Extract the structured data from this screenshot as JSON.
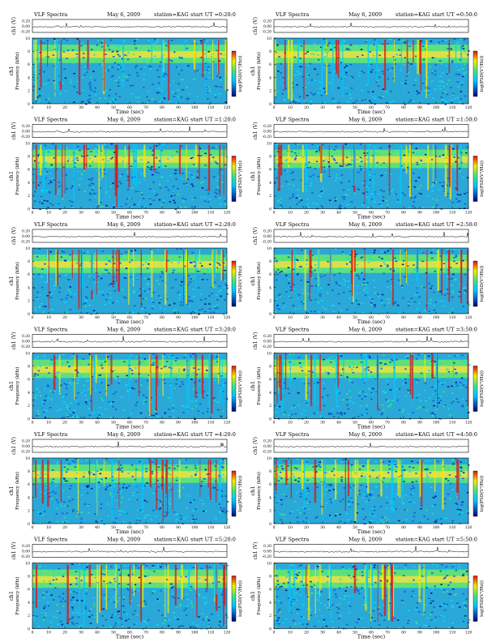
{
  "title_left": "VLF Spectra",
  "date": "May 6, 2009",
  "station": "station=KAG",
  "ch_label": "ch1 (V)",
  "freq_label": "Frequency (kHz)",
  "ch1_label": "ch1",
  "time_label": "Time (sec)",
  "cbar_label": "log(PSD(V²/Hz))",
  "colors": {
    "low": "#00007f",
    "mid": "#00c8ff",
    "green": "#40e08a",
    "yellow": "#f5ec00",
    "red": "#e01010"
  },
  "chart_data": [
    {
      "type": "heatmap",
      "start": "start UT =0:20:0",
      "xlim": [
        0,
        120
      ],
      "ylim": [
        0,
        10
      ],
      "xticks": [
        "0",
        "10",
        "20",
        "30",
        "40",
        "50",
        "60",
        "70",
        "80",
        "90",
        "100",
        "110",
        "120"
      ],
      "yticks": [
        "0",
        "2",
        "4",
        "6",
        "8",
        "10"
      ],
      "vticks": [
        "0.20",
        "0.00",
        "-0.20"
      ]
    },
    {
      "type": "heatmap",
      "start": "start UT =0:50:0",
      "xlim": [
        0,
        120
      ],
      "ylim": [
        0,
        10
      ],
      "xticks": [
        "0",
        "10",
        "20",
        "30",
        "40",
        "50",
        "60",
        "70",
        "80",
        "90",
        "100",
        "110",
        "120"
      ],
      "yticks": [
        "0",
        "2",
        "4",
        "6",
        "8",
        "10"
      ],
      "vticks": [
        "0.20",
        "0.00",
        "-0.20"
      ]
    },
    {
      "type": "heatmap",
      "start": "start UT =1:20:0",
      "xlim": [
        0,
        120
      ],
      "ylim": [
        0,
        10
      ],
      "xticks": [
        "0",
        "10",
        "20",
        "30",
        "40",
        "50",
        "60",
        "70",
        "80",
        "90",
        "100",
        "110",
        "120"
      ],
      "yticks": [
        "0",
        "2",
        "4",
        "6",
        "8",
        "10"
      ],
      "vticks": [
        "0.20",
        "0.00",
        "-0.20"
      ]
    },
    {
      "type": "heatmap",
      "start": "start UT =1:50:0",
      "xlim": [
        0,
        120
      ],
      "ylim": [
        0,
        10
      ],
      "xticks": [
        "0",
        "10",
        "20",
        "30",
        "40",
        "50",
        "60",
        "70",
        "80",
        "90",
        "100",
        "110",
        "120"
      ],
      "yticks": [
        "0",
        "2",
        "4",
        "6",
        "8",
        "10"
      ],
      "vticks": [
        "0.20",
        "0.00",
        "-0.20"
      ]
    },
    {
      "type": "heatmap",
      "start": "start UT =2:20:0",
      "xlim": [
        0,
        120
      ],
      "ylim": [
        0,
        10
      ],
      "xticks": [
        "0",
        "10",
        "20",
        "30",
        "40",
        "50",
        "60",
        "70",
        "80",
        "90",
        "100",
        "110",
        "120"
      ],
      "yticks": [
        "0",
        "2",
        "4",
        "6",
        "8",
        "10"
      ],
      "vticks": [
        "0.20",
        "0.00",
        "-0.20"
      ]
    },
    {
      "type": "heatmap",
      "start": "start UT =2:50:0",
      "xlim": [
        0,
        120
      ],
      "ylim": [
        0,
        10
      ],
      "xticks": [
        "0",
        "10",
        "20",
        "30",
        "40",
        "50",
        "60",
        "70",
        "80",
        "90",
        "100",
        "110",
        "120"
      ],
      "yticks": [
        "0",
        "2",
        "4",
        "6",
        "8",
        "10"
      ],
      "vticks": [
        "0.20",
        "0.00",
        "-0.20"
      ]
    },
    {
      "type": "heatmap",
      "start": "start UT =3:20:0",
      "xlim": [
        0,
        120
      ],
      "ylim": [
        0,
        10
      ],
      "xticks": [
        "0",
        "10",
        "20",
        "30",
        "40",
        "50",
        "60",
        "70",
        "80",
        "90",
        "100",
        "110",
        "120"
      ],
      "yticks": [
        "0",
        "2",
        "4",
        "6",
        "8",
        "10"
      ],
      "vticks": [
        "0.20",
        "0.00",
        "-0.20"
      ]
    },
    {
      "type": "heatmap",
      "start": "start UT =3:50:0",
      "xlim": [
        0,
        120
      ],
      "ylim": [
        0,
        10
      ],
      "xticks": [
        "0",
        "10",
        "20",
        "30",
        "40",
        "50",
        "60",
        "70",
        "80",
        "90",
        "100",
        "110",
        "120"
      ],
      "yticks": [
        "0",
        "2",
        "4",
        "6",
        "8",
        "10"
      ],
      "vticks": [
        "0.20",
        "0.00",
        "-0.20"
      ]
    },
    {
      "type": "heatmap",
      "start": "start UT =4:20:0",
      "xlim": [
        0,
        120
      ],
      "ylim": [
        0,
        10
      ],
      "xticks": [
        "0",
        "10",
        "20",
        "30",
        "40",
        "50",
        "60",
        "70",
        "80",
        "90",
        "100",
        "110",
        "120"
      ],
      "yticks": [
        "0",
        "2",
        "4",
        "6",
        "8",
        "10"
      ],
      "vticks": [
        "0.20",
        "0.00",
        "-0.20"
      ]
    },
    {
      "type": "heatmap",
      "start": "start UT =4:50:0",
      "xlim": [
        0,
        120
      ],
      "ylim": [
        0,
        10
      ],
      "xticks": [
        "0",
        "10",
        "20",
        "30",
        "40",
        "50",
        "60",
        "70",
        "80",
        "90",
        "100",
        "110",
        "120"
      ],
      "yticks": [
        "0",
        "2",
        "4",
        "6",
        "8",
        "10"
      ],
      "vticks": [
        "0.20",
        "0.00",
        "-0.20"
      ]
    },
    {
      "type": "heatmap",
      "start": "start UT =5:20:0",
      "xlim": [
        0,
        120
      ],
      "ylim": [
        0,
        10
      ],
      "xticks": [
        "0",
        "10",
        "20",
        "30",
        "40",
        "50",
        "60",
        "70",
        "80",
        "90",
        "100",
        "110",
        "120"
      ],
      "yticks": [
        "0",
        "2",
        "4",
        "6",
        "8",
        "10"
      ],
      "vticks": [
        "0.20",
        "0.00",
        "-0.20"
      ]
    },
    {
      "type": "heatmap",
      "start": "start UT =5:50:0",
      "xlim": [
        0,
        120
      ],
      "ylim": [
        0,
        10
      ],
      "xticks": [
        "0",
        "10",
        "20",
        "30",
        "40",
        "50",
        "60",
        "70",
        "80",
        "90",
        "100",
        "110",
        "120"
      ],
      "yticks": [
        "0",
        "2",
        "4",
        "6",
        "8",
        "10"
      ],
      "vticks": [
        "0.20",
        "0.00",
        "-0.20"
      ]
    }
  ]
}
